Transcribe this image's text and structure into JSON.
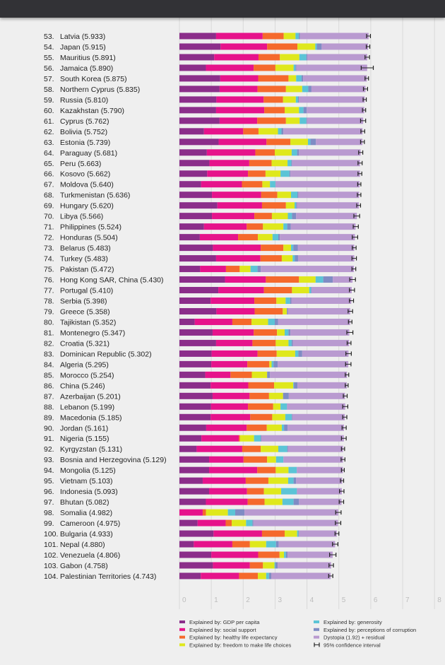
{
  "chart_data": {
    "type": "bar",
    "orientation": "horizontal-stacked",
    "title": "",
    "xlabel": "",
    "ylabel": "",
    "xlim": [
      0,
      8
    ],
    "x_ticks": [
      "0",
      "1",
      "2",
      "3",
      "4",
      "5",
      "6",
      "7",
      "8"
    ],
    "grid": true,
    "legend_position": "bottom",
    "series_names": [
      "Explained by: GDP per capita",
      "Explained by: social support",
      "Explained by: healthy life expectancy",
      "Explained by: freedom to make life choices",
      "Explained by: generosity",
      "Explained by: perceptions of corruption",
      "Dystopia (1.92) + residual"
    ],
    "series_colors": [
      "#8b2e8a",
      "#e6138b",
      "#f5692c",
      "#dfe81c",
      "#5bc4d6",
      "#7f8cc4",
      "#b99ad0"
    ],
    "ci_legend": "95% confidence interval",
    "rows": [
      {
        "rank": "53.",
        "country": "Latvia",
        "score": 5.933,
        "values": [
          1.15,
          1.46,
          0.66,
          0.37,
          0.1,
          0.04,
          2.153
        ],
        "ci": [
          5.87,
          5.99
        ]
      },
      {
        "rank": "54.",
        "country": "Japan",
        "score": 5.915,
        "values": [
          1.29,
          1.46,
          0.95,
          0.56,
          0.05,
          0.15,
          1.455
        ],
        "ci": [
          5.86,
          5.97
        ]
      },
      {
        "rank": "55.",
        "country": "Mauritius",
        "score": 5.891,
        "values": [
          1.09,
          1.39,
          0.67,
          0.61,
          0.22,
          0.03,
          1.881
        ],
        "ci": [
          5.82,
          5.96
        ]
      },
      {
        "rank": "56.",
        "country": "Jamaica",
        "score": 5.89,
        "values": [
          0.83,
          1.5,
          0.68,
          0.57,
          0.06,
          0.03,
          2.217
        ],
        "ci": [
          5.7,
          6.08
        ]
      },
      {
        "rank": "57.",
        "country": "South Korea",
        "score": 5.875,
        "values": [
          1.28,
          1.19,
          0.95,
          0.24,
          0.17,
          0.05,
          1.995
        ],
        "ci": [
          5.82,
          5.93
        ]
      },
      {
        "rank": "58.",
        "country": "Northern Cyprus",
        "score": 5.835,
        "values": [
          1.26,
          1.19,
          0.89,
          0.51,
          0.19,
          0.1,
          1.695
        ],
        "ci": [
          5.77,
          5.9
        ]
      },
      {
        "rank": "59.",
        "country": "Russia",
        "score": 5.81,
        "values": [
          1.16,
          1.48,
          0.61,
          0.4,
          0.07,
          0.03,
          2.057
        ],
        "ci": [
          5.76,
          5.86
        ]
      },
      {
        "rank": "60.",
        "country": "Kazakhstan",
        "score": 5.79,
        "values": [
          1.15,
          1.51,
          0.64,
          0.45,
          0.14,
          0.1,
          1.805
        ],
        "ci": [
          5.74,
          5.84
        ]
      },
      {
        "rank": "61.",
        "country": "Cyprus",
        "score": 5.762,
        "values": [
          1.26,
          1.18,
          0.9,
          0.43,
          0.21,
          0.02,
          1.762
        ],
        "ci": [
          5.68,
          5.84
        ]
      },
      {
        "rank": "62.",
        "country": "Bolivia",
        "score": 5.752,
        "values": [
          0.77,
          1.23,
          0.48,
          0.61,
          0.11,
          0.06,
          2.482
        ],
        "ci": [
          5.69,
          5.81
        ]
      },
      {
        "rank": "63.",
        "country": "Estonia",
        "score": 5.739,
        "values": [
          1.23,
          1.5,
          0.75,
          0.55,
          0.08,
          0.17,
          1.459
        ],
        "ci": [
          5.68,
          5.8
        ]
      },
      {
        "rank": "64.",
        "country": "Paraguay",
        "score": 5.681,
        "values": [
          0.86,
          1.52,
          0.61,
          0.53,
          0.17,
          0.06,
          1.931
        ],
        "ci": [
          5.62,
          5.75
        ]
      },
      {
        "rank": "65.",
        "country": "Peru",
        "score": 5.663,
        "values": [
          0.94,
          1.25,
          0.7,
          0.5,
          0.12,
          0.02,
          2.133
        ],
        "ci": [
          5.6,
          5.73
        ]
      },
      {
        "rank": "66.",
        "country": "Kosovo",
        "score": 5.662,
        "values": [
          0.87,
          1.28,
          0.55,
          0.47,
          0.28,
          0.03,
          2.182
        ],
        "ci": [
          5.6,
          5.72
        ]
      },
      {
        "rank": "67.",
        "country": "Moldova",
        "score": 5.64,
        "values": [
          0.68,
          1.28,
          0.64,
          0.24,
          0.17,
          0.01,
          2.627
        ],
        "ci": [
          5.59,
          5.69
        ]
      },
      {
        "rank": "68.",
        "country": "Turkmenistan",
        "score": 5.636,
        "values": [
          1.02,
          1.54,
          0.51,
          0.43,
          0.2,
          0.03,
          1.906
        ],
        "ci": [
          5.58,
          5.69
        ]
      },
      {
        "rank": "69.",
        "country": "Hungary",
        "score": 5.62,
        "values": [
          1.19,
          1.4,
          0.75,
          0.27,
          0.05,
          0.03,
          1.937
        ],
        "ci": [
          5.56,
          5.68
        ]
      },
      {
        "rank": "70.",
        "country": "Libya",
        "score": 5.566,
        "values": [
          1.02,
          1.33,
          0.55,
          0.5,
          0.13,
          0.13,
          1.906
        ],
        "ci": [
          5.47,
          5.65
        ]
      },
      {
        "rank": "71.",
        "country": "Philippines",
        "score": 5.524,
        "values": [
          0.77,
          1.34,
          0.51,
          0.64,
          0.12,
          0.11,
          2.034
        ],
        "ci": [
          5.45,
          5.61
        ]
      },
      {
        "rank": "72.",
        "country": "Honduras",
        "score": 5.504,
        "values": [
          0.64,
          1.2,
          0.62,
          0.46,
          0.18,
          0.05,
          2.354
        ],
        "ci": [
          5.42,
          5.59
        ]
      },
      {
        "rank": "73.",
        "country": "Belarus",
        "score": 5.483,
        "values": [
          1.05,
          1.5,
          0.71,
          0.24,
          0.07,
          0.14,
          1.773
        ],
        "ci": [
          5.42,
          5.54
        ]
      },
      {
        "rank": "74.",
        "country": "Turkey",
        "score": 5.483,
        "values": [
          1.15,
          1.39,
          0.67,
          0.34,
          0.07,
          0.1,
          1.763
        ],
        "ci": [
          5.41,
          5.55
        ]
      },
      {
        "rank": "75.",
        "country": "Pakistan",
        "score": 5.472,
        "values": [
          0.65,
          0.81,
          0.43,
          0.34,
          0.22,
          0.1,
          2.922
        ],
        "ci": [
          5.41,
          5.53
        ]
      },
      {
        "rank": "76.",
        "country": "Hong Kong SAR, China",
        "score": 5.43,
        "values": [
          1.43,
          1.28,
          1.04,
          0.52,
          0.24,
          0.3,
          0.618
        ],
        "ci": [
          5.34,
          5.52
        ]
      },
      {
        "rank": "77.",
        "country": "Portugal",
        "score": 5.41,
        "values": [
          1.22,
          1.43,
          0.88,
          0.54,
          0.06,
          0.01,
          1.262
        ],
        "ci": [
          5.33,
          5.49
        ]
      },
      {
        "rank": "78.",
        "country": "Serbia",
        "score": 5.398,
        "values": [
          0.98,
          1.37,
          0.69,
          0.29,
          0.14,
          0.04,
          1.878
        ],
        "ci": [
          5.33,
          5.46
        ]
      },
      {
        "rank": "79.",
        "country": "Greece",
        "score": 5.358,
        "values": [
          1.16,
          1.2,
          0.88,
          0.13,
          0.0,
          0.03,
          1.958
        ],
        "ci": [
          5.29,
          5.43
        ]
      },
      {
        "rank": "80.",
        "country": "Tajikistan",
        "score": 5.352,
        "values": [
          0.48,
          1.18,
          0.6,
          0.52,
          0.21,
          0.1,
          2.262
        ],
        "ci": [
          5.3,
          5.41
        ]
      },
      {
        "rank": "81.",
        "country": "Montenegro",
        "score": 5.347,
        "values": [
          1.04,
          1.29,
          0.73,
          0.24,
          0.12,
          0.06,
          1.847
        ],
        "ci": [
          5.25,
          5.44
        ]
      },
      {
        "rank": "82.",
        "country": "Croatia",
        "score": 5.321,
        "values": [
          1.15,
          1.14,
          0.73,
          0.4,
          0.1,
          0.04,
          1.761
        ],
        "ci": [
          5.26,
          5.38
        ]
      },
      {
        "rank": "83.",
        "country": "Dominican Republic",
        "score": 5.302,
        "values": [
          1.01,
          1.44,
          0.6,
          0.58,
          0.1,
          0.12,
          1.452
        ],
        "ci": [
          5.22,
          5.39
        ]
      },
      {
        "rank": "84.",
        "country": "Algeria",
        "score": 5.295,
        "values": [
          1.0,
          1.13,
          0.69,
          0.07,
          0.06,
          0.13,
          2.215
        ],
        "ci": [
          5.21,
          5.38
        ]
      },
      {
        "rank": "85.",
        "country": "Morocco",
        "score": 5.254,
        "values": [
          0.81,
          0.79,
          0.67,
          0.48,
          0.0,
          0.09,
          2.414
        ],
        "ci": [
          5.2,
          5.31
        ]
      },
      {
        "rank": "86.",
        "country": "China",
        "score": 5.246,
        "values": [
          0.98,
          1.18,
          0.81,
          0.6,
          0.02,
          0.11,
          1.546
        ],
        "ci": [
          5.2,
          5.29
        ]
      },
      {
        "rank": "87.",
        "country": "Azerbaijan",
        "score": 5.201,
        "values": [
          1.04,
          1.16,
          0.61,
          0.44,
          0.0,
          0.18,
          1.761
        ],
        "ci": [
          5.14,
          5.26
        ]
      },
      {
        "rank": "88.",
        "country": "Lebanon",
        "score": 5.199,
        "values": [
          0.99,
          1.16,
          0.79,
          0.23,
          0.2,
          0.01,
          1.819
        ],
        "ci": [
          5.12,
          5.28
        ]
      },
      {
        "rank": "89.",
        "country": "Macedonia",
        "score": 5.185,
        "values": [
          0.98,
          1.24,
          0.69,
          0.41,
          0.2,
          0.02,
          1.645
        ],
        "ci": [
          5.12,
          5.25
        ]
      },
      {
        "rank": "90.",
        "country": "Jordan",
        "score": 5.161,
        "values": [
          0.84,
          1.27,
          0.63,
          0.47,
          0.07,
          0.11,
          1.771
        ],
        "ci": [
          5.1,
          5.23
        ]
      },
      {
        "rank": "91.",
        "country": "Nigeria",
        "score": 5.155,
        "values": [
          0.69,
          1.17,
          0.04,
          0.44,
          0.21,
          0.02,
          2.585
        ],
        "ci": [
          5.08,
          5.23
        ]
      },
      {
        "rank": "92.",
        "country": "Kyrgyzstan",
        "score": 5.131,
        "values": [
          0.54,
          1.43,
          0.58,
          0.55,
          0.28,
          0.02,
          1.731
        ],
        "ci": [
          5.08,
          5.18
        ]
      },
      {
        "rank": "93.",
        "country": "Bosnia and Herzegovina",
        "score": 5.129,
        "values": [
          0.93,
          1.08,
          0.74,
          0.28,
          0.23,
          0.0,
          1.869
        ],
        "ci": [
          5.07,
          5.19
        ]
      },
      {
        "rank": "94.",
        "country": "Mongolia",
        "score": 5.125,
        "values": [
          0.93,
          1.51,
          0.58,
          0.4,
          0.26,
          0.0,
          1.445
        ],
        "ci": [
          5.08,
          5.17
        ]
      },
      {
        "rank": "95.",
        "country": "Vietnam",
        "score": 5.103,
        "values": [
          0.73,
          1.35,
          0.71,
          0.62,
          0.17,
          0.08,
          1.443
        ],
        "ci": [
          5.05,
          5.15
        ]
      },
      {
        "rank": "96.",
        "country": "Indonesia",
        "score": 5.093,
        "values": [
          0.93,
          1.19,
          0.53,
          0.54,
          0.49,
          0.01,
          1.403
        ],
        "ci": [
          5.02,
          5.16
        ]
      },
      {
        "rank": "97.",
        "country": "Bhutan",
        "score": 5.082,
        "values": [
          0.83,
          1.31,
          0.53,
          0.56,
          0.35,
          0.17,
          1.332
        ],
        "ci": [
          5.01,
          5.15
        ]
      },
      {
        "rank": "98.",
        "country": "Somalia",
        "score": 4.982,
        "values": [
          0.0,
          0.73,
          0.1,
          0.69,
          0.23,
          0.29,
          2.942
        ],
        "ci": [
          4.9,
          5.07
        ]
      },
      {
        "rank": "99.",
        "country": "Cameroon",
        "score": 4.975,
        "values": [
          0.57,
          0.88,
          0.19,
          0.45,
          0.2,
          0.03,
          2.655
        ],
        "ci": [
          4.89,
          5.06
        ]
      },
      {
        "rank": "100.",
        "country": "Bulgaria",
        "score": 4.933,
        "values": [
          1.07,
          1.52,
          0.71,
          0.39,
          0.04,
          0.02,
          1.183
        ],
        "ci": [
          4.88,
          5.0
        ]
      },
      {
        "rank": "101.",
        "country": "Nepal",
        "score": 4.88,
        "values": [
          0.45,
          1.21,
          0.55,
          0.51,
          0.31,
          0.08,
          1.772
        ],
        "ci": [
          4.8,
          4.97
        ]
      },
      {
        "rank": "102.",
        "country": "Venezuela",
        "score": 4.806,
        "values": [
          1.0,
          1.47,
          0.67,
          0.14,
          0.06,
          0.05,
          1.416
        ],
        "ci": [
          4.71,
          4.91
        ]
      },
      {
        "rank": "103.",
        "country": "Gabon",
        "score": 4.758,
        "values": [
          1.05,
          1.16,
          0.41,
          0.36,
          0.03,
          0.07,
          1.678
        ],
        "ci": [
          4.69,
          4.83
        ]
      },
      {
        "rank": "104.",
        "country": "Palestinian Territories",
        "score": 4.743,
        "values": [
          0.67,
          1.2,
          0.59,
          0.26,
          0.09,
          0.07,
          1.863
        ],
        "ci": [
          4.68,
          4.81
        ]
      }
    ]
  }
}
